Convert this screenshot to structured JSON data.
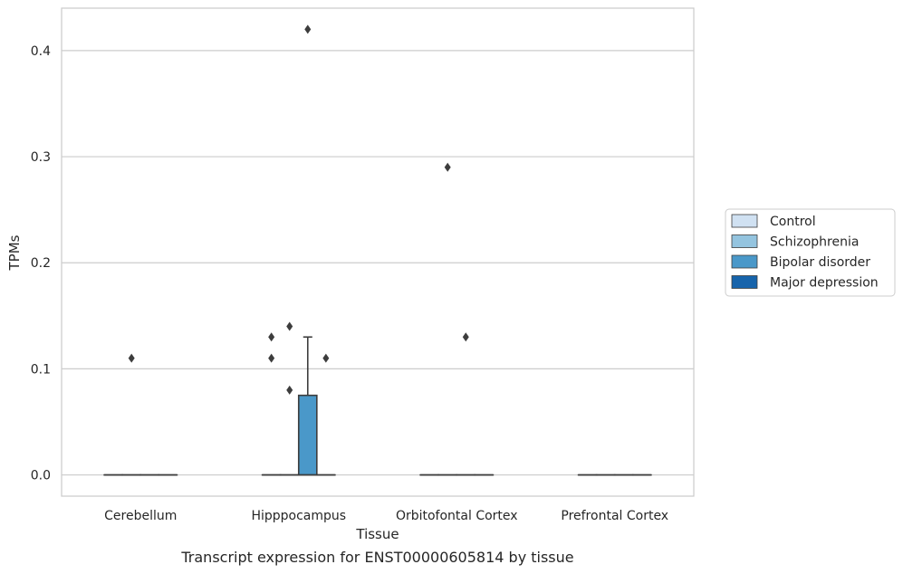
{
  "caption": "Transcript expression for ENST00000605814 by tissue",
  "chart_data": {
    "type": "box",
    "xlabel": "Tissue",
    "ylabel": "TPMs",
    "ylim": [
      -0.02,
      0.44
    ],
    "yticks": [
      0.0,
      0.1,
      0.2,
      0.3,
      0.4
    ],
    "ytick_labels": [
      "0.0",
      "0.1",
      "0.2",
      "0.3",
      "0.4"
    ],
    "grid": "horizontal",
    "legend_position": "right",
    "categories": [
      "Cerebellum",
      "Hipppocampus",
      "Orbitofontal Cortex",
      "Prefrontal Cortex"
    ],
    "series": [
      {
        "name": "Control",
        "color": "#d0e1f2"
      },
      {
        "name": "Schizophrenia",
        "color": "#94c4df"
      },
      {
        "name": "Bipolar disorder",
        "color": "#4a98c9"
      },
      {
        "name": "Major depression",
        "color": "#1764ab"
      }
    ],
    "boxes": [
      {
        "category": 0,
        "series": 0,
        "q1": 0,
        "median": 0,
        "q3": 0,
        "whislo": 0,
        "whishi": 0,
        "fliers": []
      },
      {
        "category": 0,
        "series": 1,
        "q1": 0,
        "median": 0,
        "q3": 0,
        "whislo": 0,
        "whishi": 0,
        "fliers": [
          0.11
        ]
      },
      {
        "category": 0,
        "series": 2,
        "q1": 0,
        "median": 0,
        "q3": 0,
        "whislo": 0,
        "whishi": 0,
        "fliers": []
      },
      {
        "category": 0,
        "series": 3,
        "q1": 0,
        "median": 0,
        "q3": 0,
        "whislo": 0,
        "whishi": 0,
        "fliers": []
      },
      {
        "category": 1,
        "series": 0,
        "q1": 0,
        "median": 0,
        "q3": 0,
        "whislo": 0,
        "whishi": 0,
        "fliers": [
          0.13,
          0.11
        ]
      },
      {
        "category": 1,
        "series": 1,
        "q1": 0,
        "median": 0,
        "q3": 0,
        "whislo": 0,
        "whishi": 0,
        "fliers": [
          0.14,
          0.08
        ]
      },
      {
        "category": 1,
        "series": 2,
        "q1": 0,
        "median": 0,
        "q3": 0.075,
        "whislo": 0,
        "whishi": 0.13,
        "fliers": [
          0.42
        ]
      },
      {
        "category": 1,
        "series": 3,
        "q1": 0,
        "median": 0,
        "q3": 0,
        "whislo": 0,
        "whishi": 0,
        "fliers": [
          0.11
        ]
      },
      {
        "category": 2,
        "series": 0,
        "q1": 0,
        "median": 0,
        "q3": 0,
        "whislo": 0,
        "whishi": 0,
        "fliers": []
      },
      {
        "category": 2,
        "series": 1,
        "q1": 0,
        "median": 0,
        "q3": 0,
        "whislo": 0,
        "whishi": 0,
        "fliers": [
          0.29
        ]
      },
      {
        "category": 2,
        "series": 2,
        "q1": 0,
        "median": 0,
        "q3": 0,
        "whislo": 0,
        "whishi": 0,
        "fliers": [
          0.13
        ]
      },
      {
        "category": 2,
        "series": 3,
        "q1": 0,
        "median": 0,
        "q3": 0,
        "whislo": 0,
        "whishi": 0,
        "fliers": []
      },
      {
        "category": 3,
        "series": 0,
        "q1": 0,
        "median": 0,
        "q3": 0,
        "whislo": 0,
        "whishi": 0,
        "fliers": []
      },
      {
        "category": 3,
        "series": 1,
        "q1": 0,
        "median": 0,
        "q3": 0,
        "whislo": 0,
        "whishi": 0,
        "fliers": []
      },
      {
        "category": 3,
        "series": 2,
        "q1": 0,
        "median": 0,
        "q3": 0,
        "whislo": 0,
        "whishi": 0,
        "fliers": []
      },
      {
        "category": 3,
        "series": 3,
        "q1": 0,
        "median": 0,
        "q3": 0,
        "whislo": 0,
        "whishi": 0,
        "fliers": []
      }
    ]
  }
}
